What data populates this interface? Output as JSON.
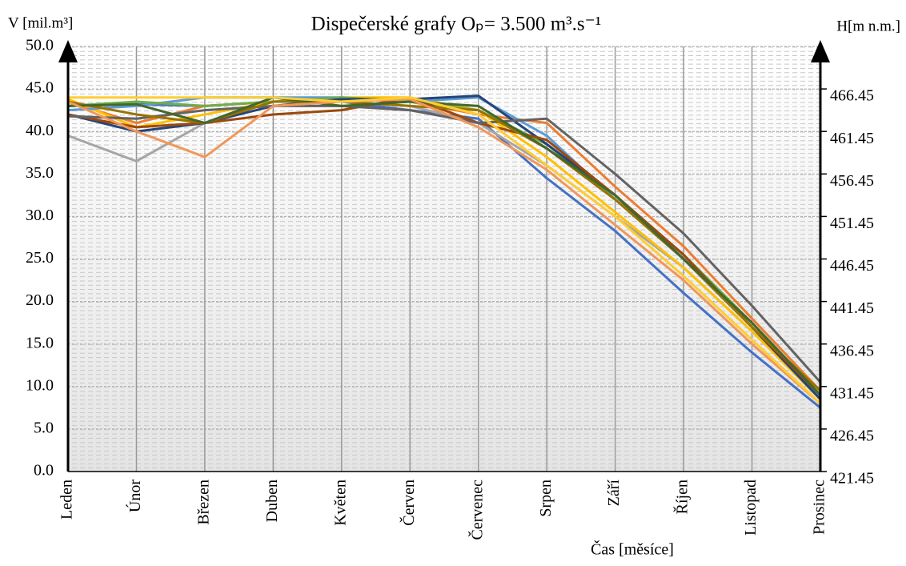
{
  "chart_data": {
    "type": "line",
    "title": "Dispečerské grafy Oₚ= 3.500 m³.s⁻¹",
    "y_label": "V [mil.m³]",
    "y2_label": "H[m n.m.]",
    "x_label": "Čas [měsíce]",
    "categories": [
      "Leden",
      "Únor",
      "Březen",
      "Duben",
      "Květen",
      "Červen",
      "Červenec",
      "Srpen",
      "Září",
      "Říjen",
      "Listopad",
      "Prosinec"
    ],
    "ylim": [
      0,
      50
    ],
    "yticks": [
      {
        "value": 0,
        "label": "0.0"
      },
      {
        "value": 5,
        "label": "5.0"
      },
      {
        "value": 10,
        "label": "10.0"
      },
      {
        "value": 15,
        "label": "15.0"
      },
      {
        "value": 20,
        "label": "20.0"
      },
      {
        "value": 25,
        "label": "25.0"
      },
      {
        "value": 30,
        "label": "30.0"
      },
      {
        "value": 35,
        "label": "35.0"
      },
      {
        "value": 40,
        "label": "40.0"
      },
      {
        "value": 45,
        "label": "45.0"
      },
      {
        "value": 50,
        "label": "50.0"
      }
    ],
    "y2lim": [
      421.45,
      471.45
    ],
    "y2ticks": [
      421.45,
      426.45,
      431.45,
      436.45,
      441.45,
      446.45,
      451.45,
      456.45,
      461.45,
      466.45
    ],
    "grid": true,
    "series": [
      {
        "color": "#4472c4",
        "values": [
          43,
          43.2,
          43,
          43.5,
          43.5,
          42.5,
          41.5,
          34.5,
          28.3,
          21,
          14,
          7.5
        ]
      },
      {
        "color": "#ed7d31",
        "values": [
          43.5,
          41,
          43,
          43.5,
          44,
          43.5,
          42,
          41,
          33.5,
          26.5,
          18,
          9.5
        ]
      },
      {
        "color": "#a5a5a5",
        "values": [
          39.5,
          36.5,
          41,
          43.5,
          43.5,
          43,
          41,
          36,
          30,
          24,
          16.5,
          9
        ]
      },
      {
        "color": "#ffc000",
        "values": [
          43.8,
          40.5,
          42,
          43.5,
          44,
          44,
          42.5,
          37,
          30.5,
          24,
          16.5,
          8.5
        ]
      },
      {
        "color": "#5b9bd5",
        "values": [
          42.5,
          43,
          44,
          44,
          44,
          43.5,
          44,
          39.5,
          32,
          25,
          17,
          8.8
        ]
      },
      {
        "color": "#70ad47",
        "values": [
          43,
          43.5,
          43,
          43.5,
          44,
          43.5,
          42.5,
          38.5,
          32,
          25.5,
          17.5,
          9
        ]
      },
      {
        "color": "#264478",
        "values": [
          42,
          40,
          41,
          43,
          43.8,
          43.8,
          44.2,
          38.5,
          32.5,
          25,
          17,
          8.5
        ]
      },
      {
        "color": "#9e480e",
        "values": [
          42,
          40.5,
          41,
          42,
          42.5,
          44,
          41,
          39,
          32.5,
          25.5,
          17,
          9
        ]
      },
      {
        "color": "#636363",
        "values": [
          41.8,
          41.5,
          42.5,
          43,
          43,
          42.5,
          41,
          41.5,
          35,
          28,
          19.5,
          10.5
        ]
      },
      {
        "color": "#997300",
        "values": [
          43.5,
          42,
          41,
          43.5,
          43.5,
          43,
          42.5,
          38,
          32,
          25,
          17,
          9.5
        ]
      },
      {
        "color": "#43682b",
        "values": [
          43,
          43.2,
          41,
          44,
          43,
          43.5,
          43,
          38,
          32.5,
          25,
          17.5,
          9
        ]
      },
      {
        "color": "#f1975a",
        "values": [
          43.5,
          40,
          37,
          43,
          43.5,
          43.8,
          40.5,
          35.5,
          29,
          22.5,
          15,
          8
        ]
      },
      {
        "color": "#ffcd33",
        "values": [
          44,
          44,
          44,
          44,
          43.5,
          44,
          42,
          36,
          30,
          23,
          15.5,
          8
        ]
      }
    ]
  }
}
